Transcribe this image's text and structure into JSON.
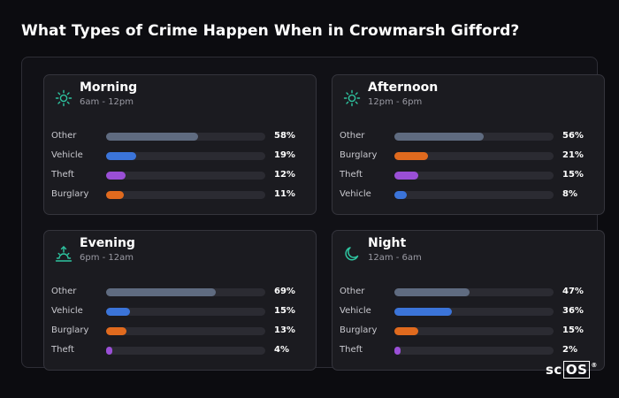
{
  "title": "What Types of Crime Happen When in Crowmarsh Gifford?",
  "logo": {
    "prefix": "sc",
    "boxed": "OS",
    "mark": "®"
  },
  "colors": {
    "Other": "#5f6b80",
    "Vehicle": "#3b74d9",
    "Theft": "#9a4fd6",
    "Burglary": "#e06a1e",
    "icon": "#2ec4a0"
  },
  "chart_data": [
    {
      "type": "bar",
      "title": "Morning",
      "subtitle": "6am - 12pm",
      "icon": "sun-icon",
      "categories": [
        "Other",
        "Vehicle",
        "Theft",
        "Burglary"
      ],
      "values": [
        58,
        19,
        12,
        11
      ],
      "labels": [
        "58%",
        "19%",
        "12%",
        "11%"
      ],
      "xlim": [
        0,
        100
      ]
    },
    {
      "type": "bar",
      "title": "Afternoon",
      "subtitle": "12pm - 6pm",
      "icon": "sun-icon",
      "categories": [
        "Other",
        "Burglary",
        "Theft",
        "Vehicle"
      ],
      "values": [
        56,
        21,
        15,
        8
      ],
      "labels": [
        "56%",
        "21%",
        "15%",
        "8%"
      ],
      "xlim": [
        0,
        100
      ]
    },
    {
      "type": "bar",
      "title": "Evening",
      "subtitle": "6pm - 12am",
      "icon": "sunset-icon",
      "categories": [
        "Other",
        "Vehicle",
        "Burglary",
        "Theft"
      ],
      "values": [
        69,
        15,
        13,
        4
      ],
      "labels": [
        "69%",
        "15%",
        "13%",
        "4%"
      ],
      "xlim": [
        0,
        100
      ]
    },
    {
      "type": "bar",
      "title": "Night",
      "subtitle": "12am - 6am",
      "icon": "moon-icon",
      "categories": [
        "Other",
        "Vehicle",
        "Burglary",
        "Theft"
      ],
      "values": [
        47,
        36,
        15,
        2
      ],
      "labels": [
        "47%",
        "36%",
        "15%",
        "2%"
      ],
      "xlim": [
        0,
        100
      ]
    }
  ]
}
